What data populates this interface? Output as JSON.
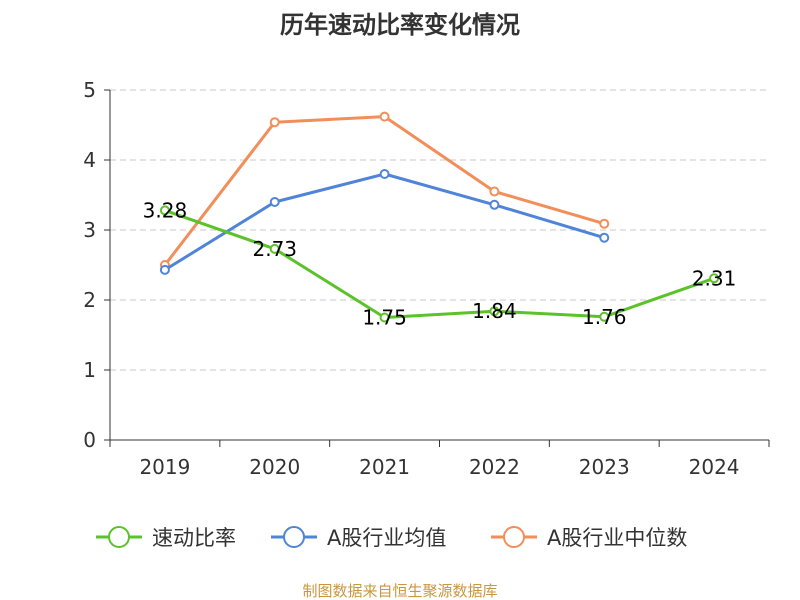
{
  "chart_data": {
    "type": "line",
    "title": "历年速动比率变化情况",
    "categories": [
      "2019",
      "2020",
      "2021",
      "2022",
      "2023",
      "2024"
    ],
    "ylim": [
      0,
      5
    ],
    "yticks": [
      0,
      1,
      2,
      3,
      4,
      5
    ],
    "grid": true,
    "legend_position": "bottom",
    "series": [
      {
        "name": "速动比率",
        "color": "#5cc22a",
        "values": [
          3.28,
          2.73,
          1.75,
          1.84,
          1.76,
          2.31
        ],
        "data_labels": [
          "3.28",
          "2.73",
          "1.75",
          "1.84",
          "1.76",
          "2.31"
        ]
      },
      {
        "name": "A股行业均值",
        "color": "#4f84d8",
        "values": [
          2.43,
          3.4,
          3.8,
          3.36,
          2.89,
          null
        ]
      },
      {
        "name": "A股行业中位数",
        "color": "#f28e5a",
        "values": [
          2.5,
          4.54,
          4.62,
          3.55,
          3.09,
          null
        ]
      }
    ],
    "source": "制图数据来自恒生聚源数据库"
  }
}
